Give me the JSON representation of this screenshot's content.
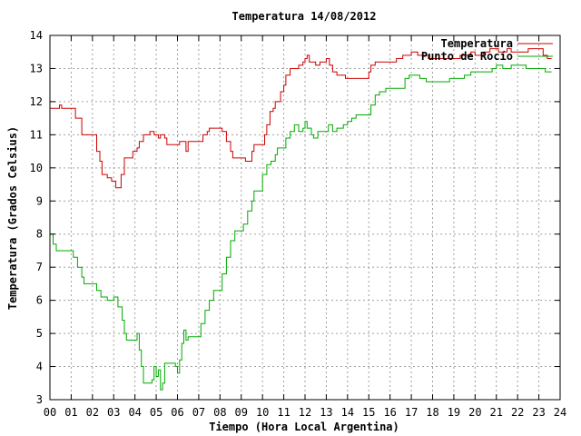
{
  "chart_data": {
    "type": "line",
    "title": "Temperatura 14/08/2012",
    "xlabel": "Tiempo (Hora Local Argentina)",
    "ylabel": "Temperatura (Grados Celsius)",
    "xlim": [
      0,
      24
    ],
    "ylim": [
      3,
      14
    ],
    "x_ticks": [
      "00",
      "01",
      "02",
      "03",
      "04",
      "05",
      "06",
      "07",
      "08",
      "09",
      "10",
      "11",
      "12",
      "13",
      "14",
      "15",
      "16",
      "17",
      "18",
      "19",
      "20",
      "21",
      "22",
      "23",
      "24"
    ],
    "y_ticks": [
      "3",
      "4",
      "5",
      "6",
      "7",
      "8",
      "9",
      "10",
      "11",
      "12",
      "13",
      "14"
    ],
    "grid": true,
    "legend_position": "top-right",
    "series": [
      {
        "name": "Temperatura",
        "color": "#cc0000",
        "points": [
          [
            0.0,
            11.8
          ],
          [
            0.4,
            11.8
          ],
          [
            0.45,
            11.9
          ],
          [
            0.55,
            11.8
          ],
          [
            1.0,
            11.8
          ],
          [
            1.2,
            11.5
          ],
          [
            1.5,
            11.0
          ],
          [
            2.0,
            11.0
          ],
          [
            2.2,
            10.5
          ],
          [
            2.35,
            10.2
          ],
          [
            2.45,
            9.8
          ],
          [
            2.7,
            9.7
          ],
          [
            2.9,
            9.6
          ],
          [
            3.1,
            9.4
          ],
          [
            3.3,
            9.4
          ],
          [
            3.35,
            9.8
          ],
          [
            3.5,
            10.3
          ],
          [
            3.8,
            10.3
          ],
          [
            3.9,
            10.5
          ],
          [
            4.1,
            10.6
          ],
          [
            4.2,
            10.8
          ],
          [
            4.4,
            11.0
          ],
          [
            4.7,
            11.1
          ],
          [
            4.9,
            11.0
          ],
          [
            5.1,
            10.9
          ],
          [
            5.2,
            11.0
          ],
          [
            5.4,
            10.9
          ],
          [
            5.5,
            10.7
          ],
          [
            6.0,
            10.7
          ],
          [
            6.1,
            10.8
          ],
          [
            6.3,
            10.8
          ],
          [
            6.4,
            10.5
          ],
          [
            6.5,
            10.8
          ],
          [
            7.0,
            10.8
          ],
          [
            7.2,
            11.0
          ],
          [
            7.4,
            11.1
          ],
          [
            7.5,
            11.2
          ],
          [
            8.0,
            11.2
          ],
          [
            8.1,
            11.1
          ],
          [
            8.3,
            10.8
          ],
          [
            8.5,
            10.5
          ],
          [
            8.6,
            10.3
          ],
          [
            9.0,
            10.3
          ],
          [
            9.2,
            10.2
          ],
          [
            9.5,
            10.5
          ],
          [
            9.6,
            10.7
          ],
          [
            10.0,
            10.7
          ],
          [
            10.1,
            11.0
          ],
          [
            10.2,
            11.3
          ],
          [
            10.35,
            11.7
          ],
          [
            10.5,
            11.8
          ],
          [
            10.6,
            12.0
          ],
          [
            10.7,
            12.0
          ],
          [
            10.85,
            12.3
          ],
          [
            11.0,
            12.5
          ],
          [
            11.1,
            12.8
          ],
          [
            11.3,
            13.0
          ],
          [
            11.5,
            13.0
          ],
          [
            11.7,
            13.1
          ],
          [
            11.9,
            13.2
          ],
          [
            12.0,
            13.3
          ],
          [
            12.1,
            13.4
          ],
          [
            12.2,
            13.2
          ],
          [
            12.4,
            13.2
          ],
          [
            12.5,
            13.1
          ],
          [
            12.7,
            13.2
          ],
          [
            13.0,
            13.3
          ],
          [
            13.15,
            13.1
          ],
          [
            13.3,
            12.9
          ],
          [
            13.5,
            12.8
          ],
          [
            13.7,
            12.8
          ],
          [
            13.9,
            12.7
          ],
          [
            14.9,
            12.7
          ],
          [
            15.0,
            12.9
          ],
          [
            15.1,
            13.1
          ],
          [
            15.3,
            13.2
          ],
          [
            16.0,
            13.2
          ],
          [
            16.3,
            13.3
          ],
          [
            16.6,
            13.4
          ],
          [
            16.8,
            13.4
          ],
          [
            17.0,
            13.5
          ],
          [
            17.3,
            13.4
          ],
          [
            17.6,
            13.4
          ],
          [
            17.8,
            13.3
          ],
          [
            19.0,
            13.3
          ],
          [
            19.3,
            13.4
          ],
          [
            19.6,
            13.4
          ],
          [
            19.8,
            13.5
          ],
          [
            20.0,
            13.4
          ],
          [
            20.4,
            13.5
          ],
          [
            20.7,
            13.6
          ],
          [
            21.0,
            13.6
          ],
          [
            21.1,
            13.5
          ],
          [
            21.3,
            13.5
          ],
          [
            21.5,
            13.6
          ],
          [
            21.7,
            13.5
          ],
          [
            22.0,
            13.5
          ],
          [
            22.2,
            13.5
          ],
          [
            22.5,
            13.6
          ],
          [
            23.0,
            13.6
          ],
          [
            23.2,
            13.4
          ],
          [
            23.4,
            13.3
          ],
          [
            23.6,
            13.3
          ]
        ]
      },
      {
        "name": "Punto de Rocío",
        "color": "#00aa00",
        "points": [
          [
            0.0,
            8.0
          ],
          [
            0.15,
            7.7
          ],
          [
            0.3,
            7.5
          ],
          [
            0.6,
            7.5
          ],
          [
            1.0,
            7.5
          ],
          [
            1.1,
            7.3
          ],
          [
            1.3,
            7.0
          ],
          [
            1.5,
            6.7
          ],
          [
            1.6,
            6.5
          ],
          [
            1.9,
            6.5
          ],
          [
            2.2,
            6.3
          ],
          [
            2.4,
            6.1
          ],
          [
            2.7,
            6.0
          ],
          [
            3.0,
            6.1
          ],
          [
            3.2,
            5.8
          ],
          [
            3.4,
            5.4
          ],
          [
            3.5,
            5.0
          ],
          [
            3.6,
            4.8
          ],
          [
            4.0,
            4.8
          ],
          [
            4.1,
            5.0
          ],
          [
            4.2,
            4.5
          ],
          [
            4.3,
            4.0
          ],
          [
            4.4,
            3.5
          ],
          [
            4.7,
            3.5
          ],
          [
            4.8,
            3.6
          ],
          [
            4.9,
            4.0
          ],
          [
            5.0,
            3.7
          ],
          [
            5.1,
            3.9
          ],
          [
            5.2,
            3.3
          ],
          [
            5.3,
            3.5
          ],
          [
            5.4,
            4.1
          ],
          [
            5.8,
            4.1
          ],
          [
            5.9,
            4.0
          ],
          [
            6.0,
            3.8
          ],
          [
            6.1,
            4.2
          ],
          [
            6.2,
            4.7
          ],
          [
            6.3,
            5.1
          ],
          [
            6.4,
            4.8
          ],
          [
            6.5,
            4.9
          ],
          [
            7.0,
            4.9
          ],
          [
            7.1,
            5.3
          ],
          [
            7.3,
            5.7
          ],
          [
            7.5,
            6.0
          ],
          [
            7.7,
            6.3
          ],
          [
            8.0,
            6.3
          ],
          [
            8.1,
            6.8
          ],
          [
            8.3,
            7.3
          ],
          [
            8.5,
            7.8
          ],
          [
            8.7,
            8.1
          ],
          [
            9.0,
            8.1
          ],
          [
            9.1,
            8.3
          ],
          [
            9.3,
            8.7
          ],
          [
            9.5,
            9.0
          ],
          [
            9.6,
            9.3
          ],
          [
            9.9,
            9.3
          ],
          [
            10.0,
            9.8
          ],
          [
            10.2,
            10.1
          ],
          [
            10.4,
            10.2
          ],
          [
            10.6,
            10.4
          ],
          [
            10.7,
            10.6
          ],
          [
            11.0,
            10.6
          ],
          [
            11.1,
            10.9
          ],
          [
            11.3,
            11.1
          ],
          [
            11.5,
            11.3
          ],
          [
            11.7,
            11.1
          ],
          [
            11.9,
            11.2
          ],
          [
            12.0,
            11.4
          ],
          [
            12.1,
            11.2
          ],
          [
            12.3,
            11.0
          ],
          [
            12.4,
            10.9
          ],
          [
            12.6,
            11.1
          ],
          [
            12.9,
            11.1
          ],
          [
            13.1,
            11.3
          ],
          [
            13.3,
            11.1
          ],
          [
            13.5,
            11.2
          ],
          [
            13.8,
            11.3
          ],
          [
            14.0,
            11.4
          ],
          [
            14.2,
            11.5
          ],
          [
            14.4,
            11.6
          ],
          [
            14.9,
            11.6
          ],
          [
            15.1,
            11.9
          ],
          [
            15.3,
            12.2
          ],
          [
            15.5,
            12.3
          ],
          [
            15.8,
            12.4
          ],
          [
            16.5,
            12.4
          ],
          [
            16.7,
            12.7
          ],
          [
            16.9,
            12.8
          ],
          [
            17.2,
            12.8
          ],
          [
            17.4,
            12.7
          ],
          [
            17.7,
            12.6
          ],
          [
            18.0,
            12.6
          ],
          [
            18.6,
            12.6
          ],
          [
            18.8,
            12.7
          ],
          [
            19.0,
            12.7
          ],
          [
            19.5,
            12.8
          ],
          [
            19.8,
            12.9
          ],
          [
            20.5,
            12.9
          ],
          [
            20.8,
            13.0
          ],
          [
            21.0,
            13.1
          ],
          [
            21.3,
            13.0
          ],
          [
            21.5,
            13.0
          ],
          [
            21.7,
            13.1
          ],
          [
            22.0,
            13.1
          ],
          [
            22.4,
            13.0
          ],
          [
            22.8,
            13.0
          ],
          [
            23.0,
            13.0
          ],
          [
            23.3,
            12.9
          ],
          [
            23.6,
            12.9
          ]
        ]
      }
    ]
  }
}
